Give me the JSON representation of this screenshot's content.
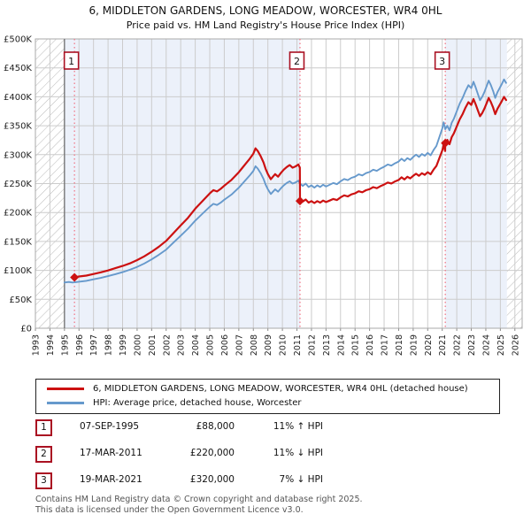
{
  "title": "6, MIDDLETON GARDENS, LONG MEADOW, WORCESTER, WR4 0HL",
  "subtitle": "Price paid vs. HM Land Registry's House Price Index (HPI)",
  "colors": {
    "price_paid_line": "#cc1111",
    "hpi_line": "#6699cc",
    "sale_vline": "#f07080",
    "marker_box_border": "#aa1122",
    "shaded_period_fill": "#ecf1fa",
    "gridline": "#cccccc",
    "plot_border": "#aaaaaa",
    "data_start_line": "#666666",
    "footer_text": "#555555"
  },
  "legend": {
    "items": [
      {
        "label": "6, MIDDLETON GARDENS, LONG MEADOW, WORCESTER, WR4 0HL (detached house)",
        "color": "#cc1111"
      },
      {
        "label": "HPI: Average price, detached house, Worcester",
        "color": "#6699cc"
      }
    ]
  },
  "transactions": [
    {
      "num": "1",
      "date": "07-SEP-1995",
      "price": "£88,000",
      "hpi_diff": "11% ↑ HPI"
    },
    {
      "num": "2",
      "date": "17-MAR-2011",
      "price": "£220,000",
      "hpi_diff": "11% ↓ HPI"
    },
    {
      "num": "3",
      "date": "19-MAR-2021",
      "price": "£320,000",
      "hpi_diff": "7% ↓ HPI"
    }
  ],
  "footer": {
    "line1": "Contains HM Land Registry data © Crown copyright and database right 2025.",
    "line2": "This data is licensed under the Open Government Licence v3.0."
  },
  "chart_data": {
    "type": "line",
    "title": "Price paid vs. HM Land Registry's House Price Index (HPI)",
    "xlabel": "",
    "ylabel": "",
    "xlim": [
      1993,
      2026.5
    ],
    "ylim": [
      0,
      500
    ],
    "values_unit": "GBP thousands",
    "grid": true,
    "legend_position": "below",
    "x_ticks": [
      1993,
      1994,
      1995,
      1996,
      1997,
      1998,
      1999,
      2000,
      2001,
      2002,
      2003,
      2004,
      2005,
      2006,
      2007,
      2008,
      2009,
      2010,
      2011,
      2012,
      2013,
      2014,
      2015,
      2016,
      2017,
      2018,
      2019,
      2020,
      2021,
      2022,
      2023,
      2024,
      2025,
      2026
    ],
    "y_tick_values": [
      0,
      50,
      100,
      150,
      200,
      250,
      300,
      350,
      400,
      450,
      500
    ],
    "y_tick_labels": [
      "£0",
      "£50K",
      "£100K",
      "£150K",
      "£200K",
      "£250K",
      "£300K",
      "£350K",
      "£400K",
      "£450K",
      "£500K"
    ],
    "shaded_periods": [
      [
        1995.0,
        2011.21
      ],
      [
        2021.21,
        2025.45
      ]
    ],
    "hatched_periods": [
      [
        1993.0,
        1995.0
      ],
      [
        2025.45,
        2026.5
      ]
    ],
    "data_start_year": 1995.0,
    "sale_markers": [
      {
        "label": "1",
        "year": 1995.69,
        "value": 88,
        "date": "07-SEP-1995",
        "price_gbp": 88000
      },
      {
        "label": "2",
        "year": 2011.21,
        "value": 220,
        "date": "17-MAR-2011",
        "price_gbp": 220000
      },
      {
        "label": "3",
        "year": 2021.21,
        "value": 320,
        "date": "19-MAR-2021",
        "price_gbp": 320000
      }
    ],
    "series": [
      {
        "name": "6, MIDDLETON GARDENS, LONG MEADOW, WORCESTER, WR4 0HL (detached house)",
        "color": "#cc1111",
        "points": [
          [
            1995.7,
            88
          ],
          [
            1996,
            89.4
          ],
          [
            1996.5,
            91
          ],
          [
            1997,
            93.8
          ],
          [
            1997.5,
            96.6
          ],
          [
            1998,
            99.9
          ],
          [
            1998.5,
            103.8
          ],
          [
            1999,
            107.7
          ],
          [
            1999.5,
            112.1
          ],
          [
            2000,
            117.7
          ],
          [
            2000.5,
            124.3
          ],
          [
            2001,
            132.1
          ],
          [
            2001.5,
            141
          ],
          [
            2002,
            151
          ],
          [
            2002.5,
            164.3
          ],
          [
            2003,
            177.6
          ],
          [
            2003.5,
            190.9
          ],
          [
            2004,
            206.5
          ],
          [
            2004.5,
            219.8
          ],
          [
            2005,
            233.1
          ],
          [
            2005.25,
            238.7
          ],
          [
            2005.5,
            236.4
          ],
          [
            2005.75,
            240.9
          ],
          [
            2006,
            246.4
          ],
          [
            2006.5,
            256.4
          ],
          [
            2007,
            269.7
          ],
          [
            2007.25,
            277.5
          ],
          [
            2007.5,
            285.3
          ],
          [
            2007.75,
            293
          ],
          [
            2008,
            301.9
          ],
          [
            2008.15,
            310.8
          ],
          [
            2008.3,
            306.4
          ],
          [
            2008.5,
            297.5
          ],
          [
            2008.7,
            286.4
          ],
          [
            2008.85,
            275.3
          ],
          [
            2009,
            266.4
          ],
          [
            2009.2,
            257.5
          ],
          [
            2009.35,
            262
          ],
          [
            2009.5,
            266.4
          ],
          [
            2009.7,
            262
          ],
          [
            2009.9,
            268.6
          ],
          [
            2010.1,
            274.2
          ],
          [
            2010.3,
            278.6
          ],
          [
            2010.5,
            281.9
          ],
          [
            2010.7,
            277.5
          ],
          [
            2010.9,
            279.7
          ],
          [
            2011.1,
            283.1
          ],
          [
            2011.2,
            277.5
          ],
          [
            2011.21,
            220
          ],
          [
            2011.4,
            218.9
          ],
          [
            2011.6,
            222.5
          ],
          [
            2011.8,
            217.2
          ],
          [
            2012,
            219.8
          ],
          [
            2012.2,
            216.3
          ],
          [
            2012.4,
            219.8
          ],
          [
            2012.6,
            217.2
          ],
          [
            2012.8,
            220.7
          ],
          [
            2013,
            218.1
          ],
          [
            2013.25,
            220.7
          ],
          [
            2013.5,
            223.4
          ],
          [
            2013.75,
            221.6
          ],
          [
            2014,
            226.1
          ],
          [
            2014.25,
            229.6
          ],
          [
            2014.5,
            227.8
          ],
          [
            2014.75,
            231.4
          ],
          [
            2015,
            233.2
          ],
          [
            2015.25,
            236.7
          ],
          [
            2015.5,
            235
          ],
          [
            2015.75,
            238.5
          ],
          [
            2016,
            240.3
          ],
          [
            2016.25,
            243.9
          ],
          [
            2016.5,
            242.1
          ],
          [
            2016.75,
            245.6
          ],
          [
            2017,
            248.3
          ],
          [
            2017.25,
            251.9
          ],
          [
            2017.5,
            250.1
          ],
          [
            2017.75,
            253.7
          ],
          [
            2018,
            256.3
          ],
          [
            2018.2,
            260.8
          ],
          [
            2018.4,
            257.2
          ],
          [
            2018.6,
            261.7
          ],
          [
            2018.8,
            259
          ],
          [
            2019,
            263.4
          ],
          [
            2019.2,
            267
          ],
          [
            2019.4,
            263.4
          ],
          [
            2019.6,
            267.9
          ],
          [
            2019.8,
            265.2
          ],
          [
            2020,
            269.7
          ],
          [
            2020.2,
            266.1
          ],
          [
            2020.4,
            274.1
          ],
          [
            2020.6,
            280.4
          ],
          [
            2020.8,
            293.7
          ],
          [
            2021,
            307.1
          ],
          [
            2021.1,
            316.8
          ],
          [
            2021.2,
            306.2
          ],
          [
            2021.21,
            320
          ],
          [
            2021.35,
            325.5
          ],
          [
            2021.5,
            318.1
          ],
          [
            2021.65,
            330.2
          ],
          [
            2021.8,
            336.7
          ],
          [
            2022,
            348.8
          ],
          [
            2022.2,
            360.8
          ],
          [
            2022.4,
            370.1
          ],
          [
            2022.6,
            381.3
          ],
          [
            2022.8,
            390.6
          ],
          [
            2023,
            386
          ],
          [
            2023.15,
            396.2
          ],
          [
            2023.3,
            386.9
          ],
          [
            2023.45,
            376.7
          ],
          [
            2023.6,
            366.4
          ],
          [
            2023.75,
            372
          ],
          [
            2023.9,
            379.4
          ],
          [
            2024.05,
            388.7
          ],
          [
            2024.2,
            398
          ],
          [
            2024.35,
            390.6
          ],
          [
            2024.5,
            381.3
          ],
          [
            2024.65,
            370.1
          ],
          [
            2024.8,
            379.4
          ],
          [
            2024.95,
            386
          ],
          [
            2025.1,
            392.5
          ],
          [
            2025.25,
            399.9
          ],
          [
            2025.4,
            394.3
          ]
        ]
      },
      {
        "name": "HPI: Average price, detached house, Worcester",
        "color": "#6699cc",
        "points": [
          [
            1995,
            79
          ],
          [
            1995.3,
            80
          ],
          [
            1995.55,
            79
          ],
          [
            1995.7,
            79.3
          ],
          [
            1996,
            80.5
          ],
          [
            1996.5,
            82
          ],
          [
            1997,
            84.5
          ],
          [
            1997.5,
            87
          ],
          [
            1998,
            90
          ],
          [
            1998.5,
            93.5
          ],
          [
            1999,
            97
          ],
          [
            1999.5,
            101
          ],
          [
            2000,
            106
          ],
          [
            2000.5,
            112
          ],
          [
            2001,
            119
          ],
          [
            2001.5,
            127
          ],
          [
            2002,
            136
          ],
          [
            2002.5,
            148
          ],
          [
            2003,
            160
          ],
          [
            2003.5,
            172
          ],
          [
            2004,
            186
          ],
          [
            2004.5,
            198
          ],
          [
            2005,
            210
          ],
          [
            2005.25,
            215
          ],
          [
            2005.5,
            213
          ],
          [
            2005.75,
            217
          ],
          [
            2006,
            222
          ],
          [
            2006.5,
            231
          ],
          [
            2007,
            243
          ],
          [
            2007.25,
            250
          ],
          [
            2007.5,
            257
          ],
          [
            2007.75,
            264
          ],
          [
            2008,
            272
          ],
          [
            2008.15,
            280
          ],
          [
            2008.3,
            276
          ],
          [
            2008.5,
            268
          ],
          [
            2008.7,
            258
          ],
          [
            2008.85,
            248
          ],
          [
            2009,
            240
          ],
          [
            2009.2,
            232
          ],
          [
            2009.35,
            236
          ],
          [
            2009.5,
            240
          ],
          [
            2009.7,
            236
          ],
          [
            2009.9,
            242
          ],
          [
            2010.1,
            247
          ],
          [
            2010.3,
            251
          ],
          [
            2010.5,
            254
          ],
          [
            2010.7,
            250
          ],
          [
            2010.9,
            252
          ],
          [
            2011.1,
            255
          ],
          [
            2011.21,
            250
          ],
          [
            2011.4,
            246
          ],
          [
            2011.6,
            250
          ],
          [
            2011.8,
            244
          ],
          [
            2012,
            247
          ],
          [
            2012.2,
            243
          ],
          [
            2012.4,
            247
          ],
          [
            2012.6,
            244
          ],
          [
            2012.8,
            248
          ],
          [
            2013,
            245
          ],
          [
            2013.25,
            248
          ],
          [
            2013.5,
            251
          ],
          [
            2013.75,
            249
          ],
          [
            2014,
            254
          ],
          [
            2014.25,
            258
          ],
          [
            2014.5,
            256
          ],
          [
            2014.75,
            260
          ],
          [
            2015,
            262
          ],
          [
            2015.25,
            266
          ],
          [
            2015.5,
            264
          ],
          [
            2015.75,
            268
          ],
          [
            2016,
            270
          ],
          [
            2016.25,
            274
          ],
          [
            2016.5,
            272
          ],
          [
            2016.75,
            276
          ],
          [
            2017,
            279
          ],
          [
            2017.25,
            283
          ],
          [
            2017.5,
            281
          ],
          [
            2017.75,
            285
          ],
          [
            2018,
            288
          ],
          [
            2018.2,
            293
          ],
          [
            2018.4,
            289
          ],
          [
            2018.6,
            294
          ],
          [
            2018.8,
            291
          ],
          [
            2019,
            296
          ],
          [
            2019.2,
            300
          ],
          [
            2019.4,
            296
          ],
          [
            2019.6,
            301
          ],
          [
            2019.8,
            298
          ],
          [
            2020,
            303
          ],
          [
            2020.2,
            299
          ],
          [
            2020.4,
            308
          ],
          [
            2020.6,
            315
          ],
          [
            2020.8,
            330
          ],
          [
            2021,
            345
          ],
          [
            2021.1,
            356
          ],
          [
            2021.21,
            344
          ],
          [
            2021.35,
            350
          ],
          [
            2021.5,
            342
          ],
          [
            2021.65,
            355
          ],
          [
            2021.8,
            362
          ],
          [
            2022,
            375
          ],
          [
            2022.2,
            388
          ],
          [
            2022.4,
            398
          ],
          [
            2022.6,
            410
          ],
          [
            2022.8,
            420
          ],
          [
            2023,
            415
          ],
          [
            2023.15,
            426
          ],
          [
            2023.3,
            416
          ],
          [
            2023.45,
            405
          ],
          [
            2023.6,
            394
          ],
          [
            2023.75,
            400
          ],
          [
            2023.9,
            408
          ],
          [
            2024.05,
            418
          ],
          [
            2024.2,
            428
          ],
          [
            2024.35,
            420
          ],
          [
            2024.5,
            410
          ],
          [
            2024.65,
            398
          ],
          [
            2024.8,
            408
          ],
          [
            2024.95,
            415
          ],
          [
            2025.1,
            422
          ],
          [
            2025.25,
            430
          ],
          [
            2025.4,
            424
          ]
        ]
      }
    ]
  }
}
